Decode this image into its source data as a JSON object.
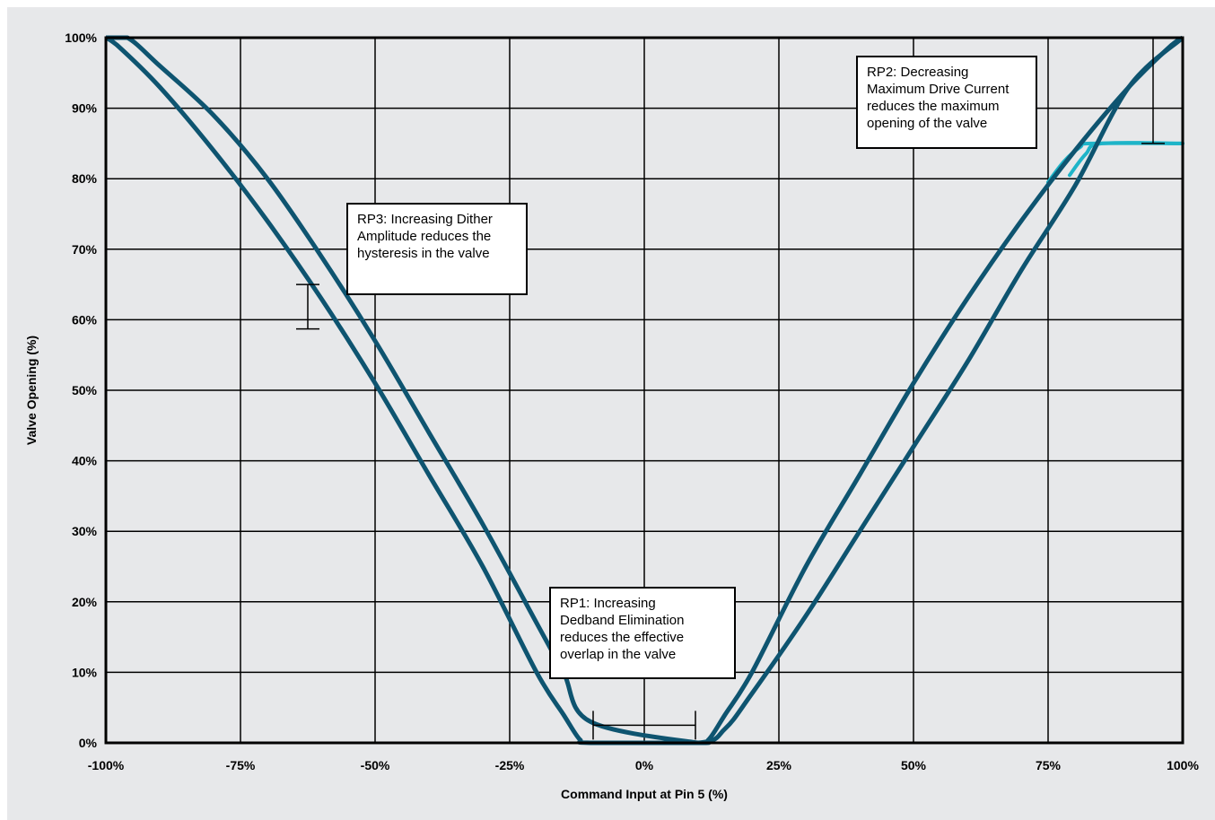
{
  "chart_data": {
    "type": "line",
    "xlabel": "Command Input at Pin 5 (%)",
    "ylabel": "Valve Opening (%)",
    "xlim": [
      -100,
      100
    ],
    "ylim": [
      0,
      100
    ],
    "x_ticks": [
      "-100%",
      "-75%",
      "-50%",
      "-25%",
      "0%",
      "25%",
      "50%",
      "75%",
      "100%"
    ],
    "y_ticks": [
      "0%",
      "10%",
      "20%",
      "30%",
      "40%",
      "50%",
      "60%",
      "70%",
      "80%",
      "90%",
      "100%"
    ],
    "grid": true,
    "colors": {
      "main": "#0e5470",
      "reduced": "#1eb4c8"
    },
    "series": [
      {
        "x": [
          -100,
          -98,
          -90,
          -80,
          -70,
          -60,
          -50,
          -40,
          -30,
          -20,
          -15,
          -12,
          -10,
          10,
          15,
          20,
          30,
          40,
          50,
          60,
          70,
          80,
          90,
          100
        ],
        "y": [
          100,
          99,
          93,
          84,
          74,
          63,
          51,
          38,
          25,
          10,
          4,
          0.5,
          0,
          0,
          2,
          7,
          18,
          30,
          42,
          54,
          67,
          79,
          93,
          100
        ]
      },
      {
        "x": [
          -100,
          -96,
          -90,
          -80,
          -70,
          -60,
          -50,
          -40,
          -30,
          -20,
          -15,
          -10,
          10,
          12,
          15,
          20,
          30,
          40,
          50,
          60,
          70,
          80,
          90,
          98,
          100
        ],
        "y": [
          100,
          100,
          96,
          89,
          80,
          69,
          57,
          44,
          31,
          17,
          10,
          3,
          0,
          0.5,
          4,
          10,
          25,
          38,
          51,
          63,
          74,
          84,
          93,
          99,
          100
        ]
      },
      {
        "x": [
          75,
          78,
          81,
          83,
          100
        ],
        "y": [
          79.5,
          82.5,
          84.5,
          85,
          85
        ]
      },
      {
        "x": [
          79,
          82,
          85,
          100
        ],
        "y": [
          80.5,
          83.5,
          85,
          85
        ]
      }
    ],
    "annotations": {
      "rp3": [
        "RP3: Increasing Dither",
        "Amplitude reduces the",
        "hysteresis in the valve"
      ],
      "rp2": [
        "RP2: Decreasing",
        "Maximum Drive Current",
        "reduces the maximum",
        "opening of the valve"
      ],
      "rp1": [
        "RP1: Increasing",
        "Dedband Elimination",
        "reduces the effective",
        "overlap in the valve"
      ]
    }
  }
}
